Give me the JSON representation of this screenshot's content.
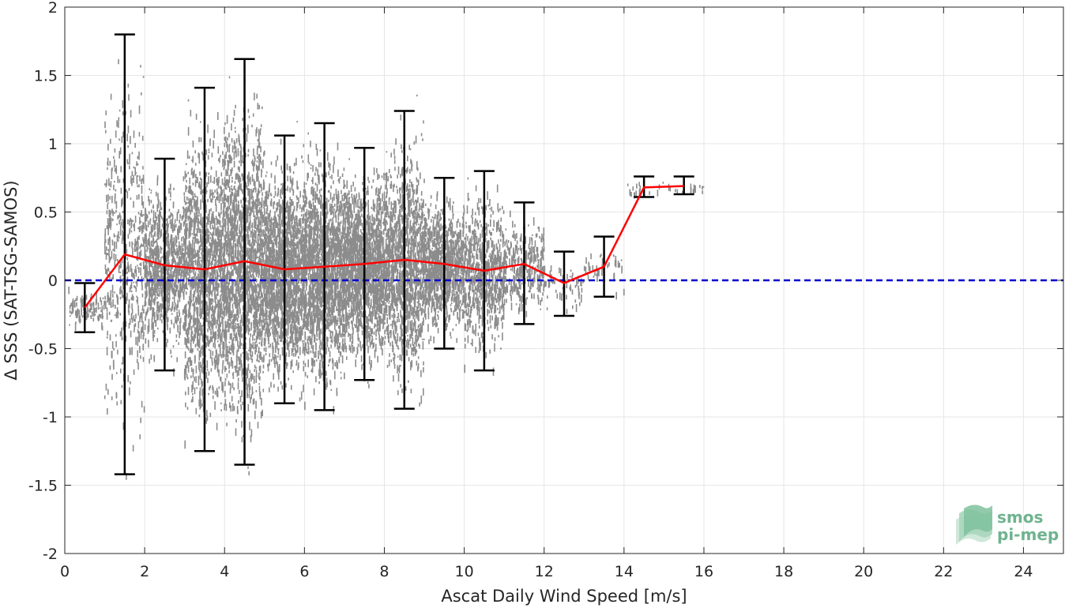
{
  "chart_data": {
    "type": "scatter",
    "title": "",
    "xlabel": "Ascat Daily Wind Speed [m/s]",
    "ylabel": "Δ SSS (SAT-TSG-SAMOS)",
    "xlim": [
      0,
      25
    ],
    "ylim": [
      -2,
      2
    ],
    "xticks": [
      0,
      2,
      4,
      6,
      8,
      10,
      12,
      14,
      16,
      18,
      20,
      22,
      24
    ],
    "xtick_labels": [
      "0",
      "2",
      "4",
      "6",
      "8",
      "10",
      "12",
      "14",
      "16",
      "18",
      "20",
      "22",
      "24"
    ],
    "yticks": [
      2,
      1.5,
      1,
      0.5,
      0,
      -0.5,
      -1,
      -1.5,
      -2
    ],
    "ytick_labels": [
      "2",
      "1.5",
      "1",
      "0.5",
      "0",
      "-0.5",
      "-1",
      "-1.5",
      "-2"
    ],
    "grid": true,
    "colors": {
      "scatter": "#808080",
      "error_bars": "#000000",
      "mean_line": "#ff0000",
      "zero_line": "#0000cc",
      "grid": "#e6e6e6",
      "axes": "#262626",
      "logo_text": "#6fb38f"
    },
    "series": [
      {
        "kind": "binned_mean_with_std",
        "x": [
          0.5,
          1.5,
          2.5,
          3.5,
          4.5,
          5.5,
          6.5,
          7.5,
          8.5,
          9.5,
          10.5,
          11.5,
          12.5,
          13.5,
          14.5,
          15.5
        ],
        "y": [
          -0.2,
          0.19,
          0.11,
          0.08,
          0.14,
          0.08,
          0.1,
          0.12,
          0.15,
          0.12,
          0.07,
          0.12,
          -0.02,
          0.1,
          0.68,
          0.69
        ],
        "lower": [
          -0.38,
          -1.42,
          -0.66,
          -1.25,
          -1.35,
          -0.9,
          -0.95,
          -0.73,
          -0.94,
          -0.5,
          -0.66,
          -0.32,
          -0.26,
          -0.12,
          0.61,
          0.63
        ],
        "upper": [
          -0.02,
          1.8,
          0.89,
          1.41,
          1.62,
          1.06,
          1.15,
          0.97,
          1.24,
          0.75,
          0.8,
          0.57,
          0.21,
          0.32,
          0.76,
          0.76
        ]
      },
      {
        "kind": "reference_line",
        "y": 0,
        "style": "dashed"
      }
    ],
    "scatter_envelope": {
      "x_range": [
        0.1,
        16.2
      ],
      "note": "dense cloud of individual match-up points, density highest between 3 and 9 m/s"
    }
  },
  "logo": {
    "line1": "smos",
    "line2": "pi-mep",
    "icon": "layered-waves-icon"
  }
}
